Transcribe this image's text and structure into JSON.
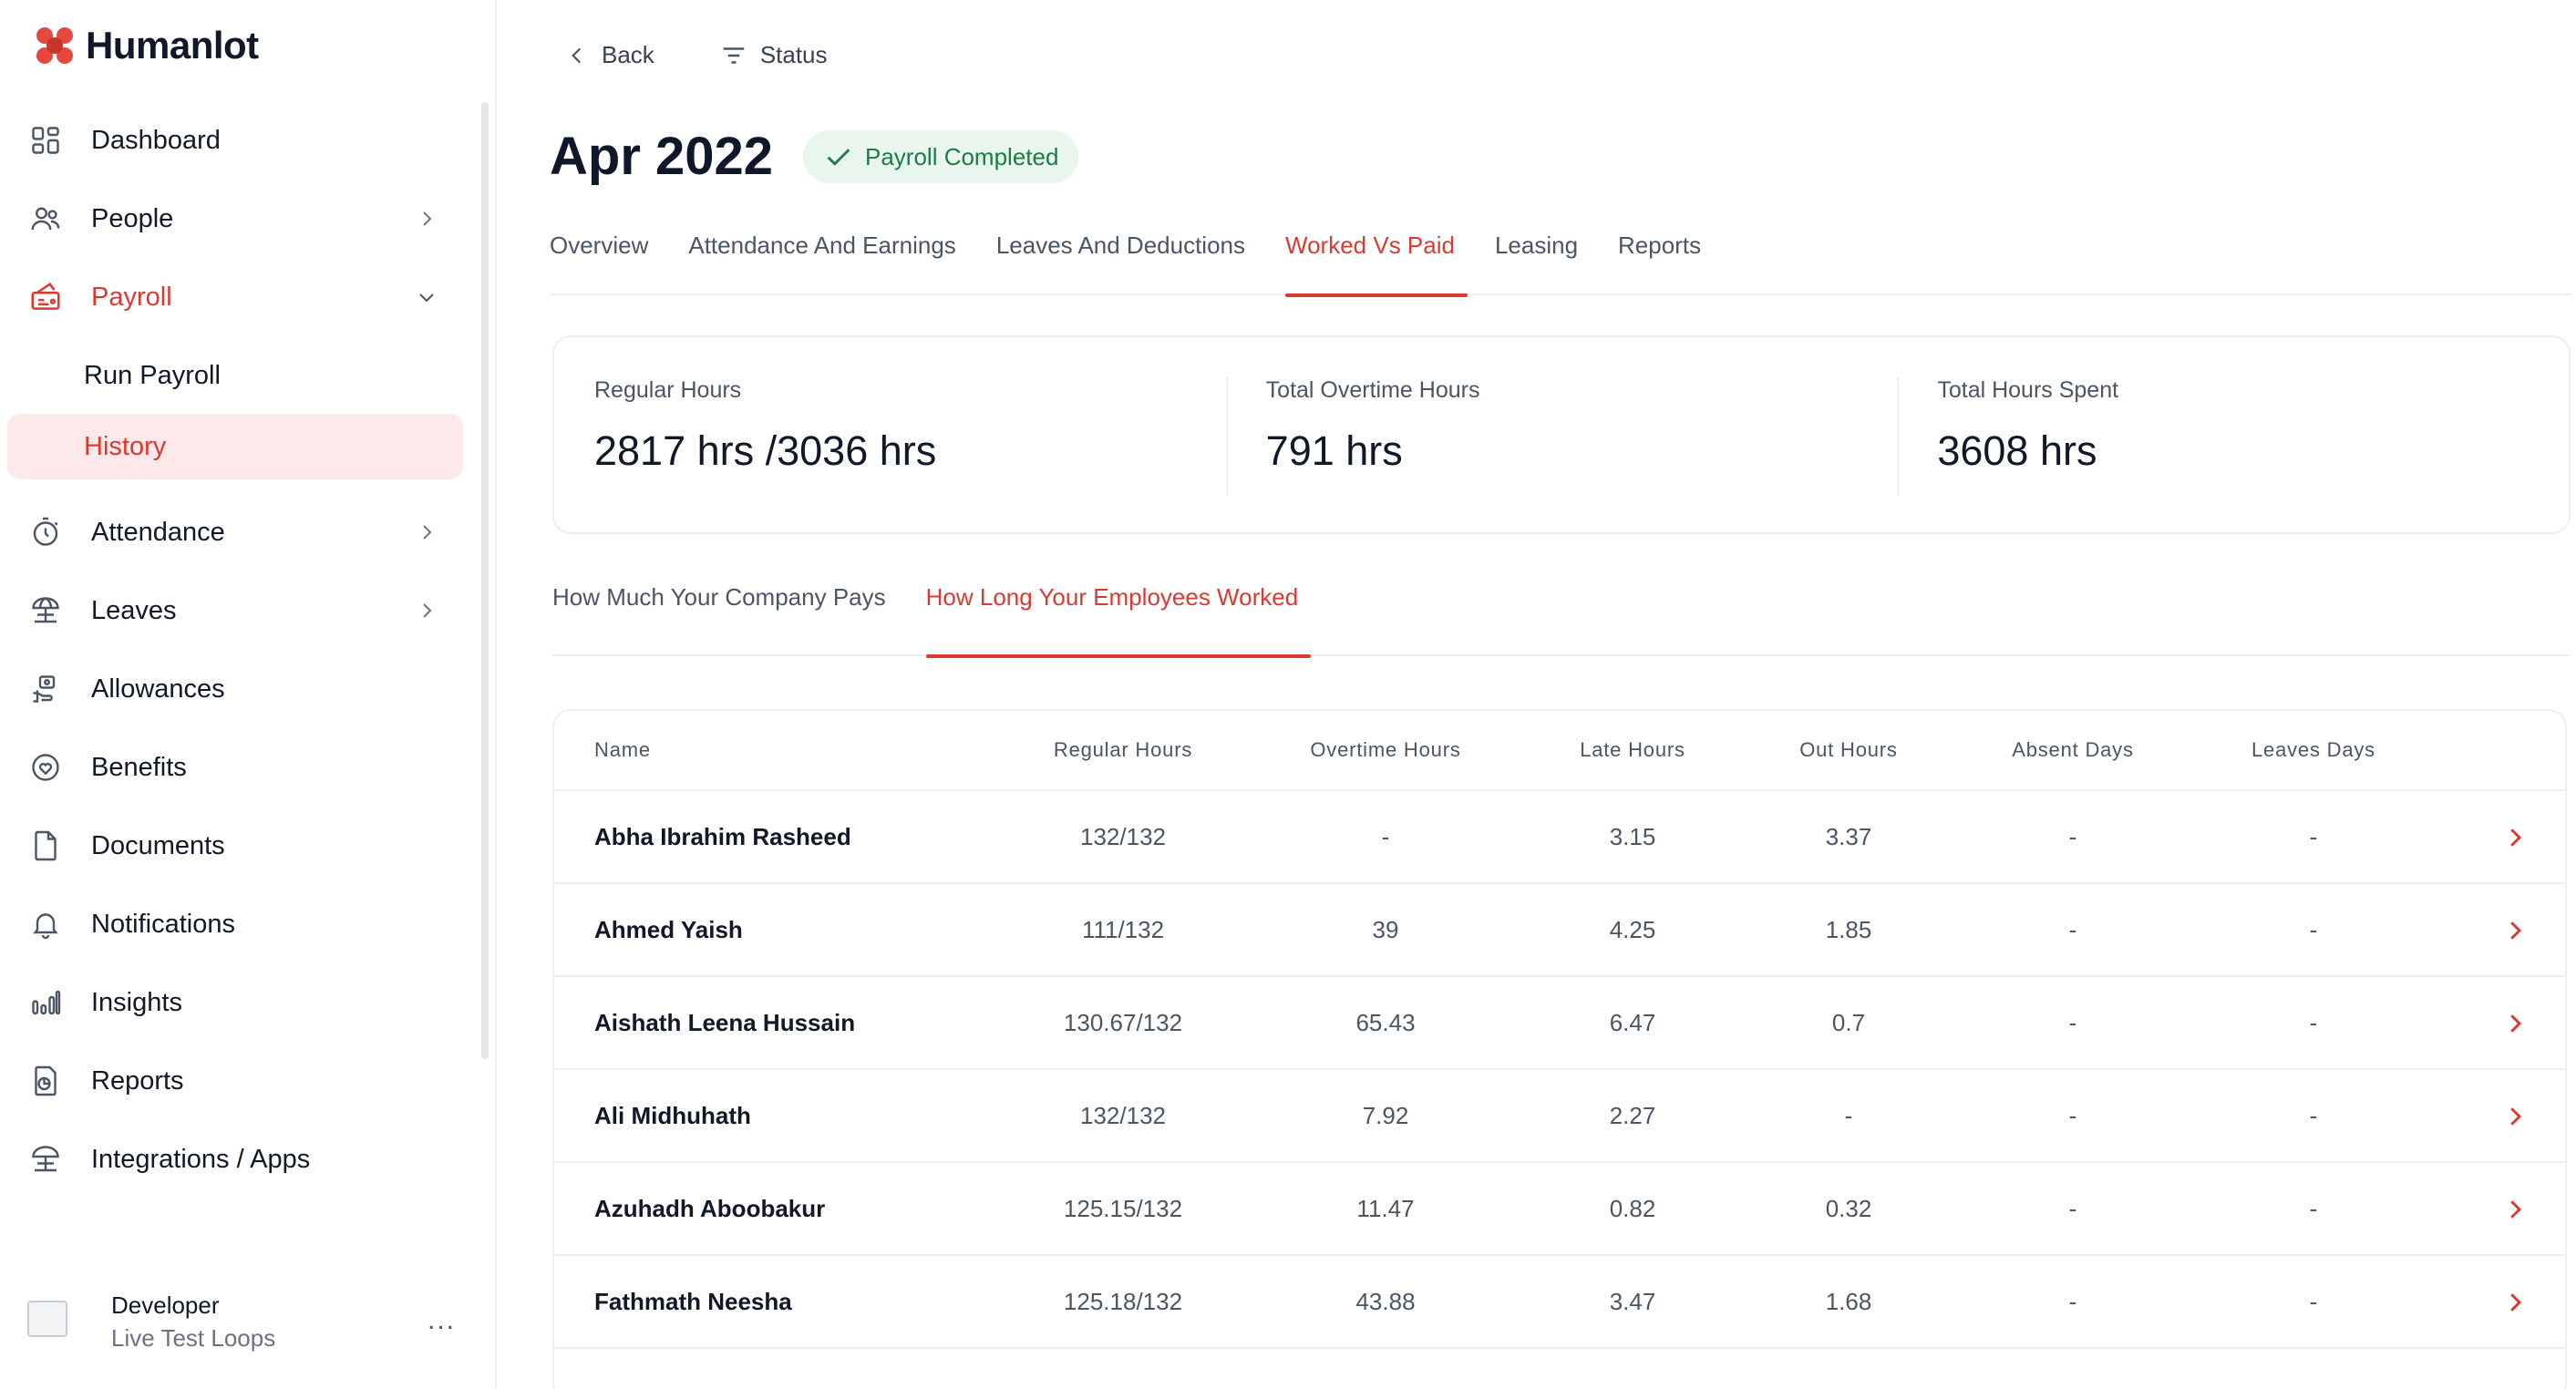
{
  "brand": {
    "name": "Humanlot",
    "accent": "#d93a32"
  },
  "sidebar": {
    "items": [
      {
        "label": "Dashboard",
        "icon": "dashboard-icon"
      },
      {
        "label": "People",
        "icon": "people-icon"
      },
      {
        "label": "Payroll",
        "icon": "payroll-icon"
      },
      {
        "label": "Attendance",
        "icon": "stopwatch-icon"
      },
      {
        "label": "Leaves",
        "icon": "beach-umbrella-icon"
      },
      {
        "label": "Allowances",
        "icon": "allowance-hand-icon"
      },
      {
        "label": "Benefits",
        "icon": "heart-shield-icon"
      },
      {
        "label": "Documents",
        "icon": "document-icon"
      },
      {
        "label": "Notifications",
        "icon": "bell-icon"
      },
      {
        "label": "Insights",
        "icon": "bar-chart-icon"
      },
      {
        "label": "Reports",
        "icon": "report-icon"
      },
      {
        "label": "Integrations / Apps",
        "icon": "integrations-icon"
      }
    ],
    "payroll_sub": [
      {
        "label": "Run Payroll"
      },
      {
        "label": "History"
      }
    ],
    "user": {
      "name": "Developer",
      "org": "Live Test Loops",
      "more": "..."
    }
  },
  "topbar": {
    "back": "Back",
    "status": "Status"
  },
  "header": {
    "title": "Apr 2022",
    "badge": "Payroll Completed"
  },
  "tabs": [
    {
      "label": "Overview"
    },
    {
      "label": "Attendance And Earnings"
    },
    {
      "label": "Leaves And Deductions"
    },
    {
      "label": "Worked Vs Paid"
    },
    {
      "label": "Leasing"
    },
    {
      "label": "Reports"
    }
  ],
  "stats": [
    {
      "label": "Regular Hours",
      "value": "2817 hrs /3036 hrs"
    },
    {
      "label": "Total Overtime Hours",
      "value": "791 hrs"
    },
    {
      "label": "Total Hours Spent",
      "value": "3608 hrs"
    }
  ],
  "subtabs": [
    {
      "label": "How Much Your Company Pays"
    },
    {
      "label": "How Long Your Employees Worked"
    }
  ],
  "table": {
    "columns": [
      "Name",
      "Regular Hours",
      "Overtime Hours",
      "Late Hours",
      "Out Hours",
      "Absent Days",
      "Leaves Days"
    ],
    "rows": [
      [
        "Abha Ibrahim Rasheed",
        "132/132",
        "-",
        "3.15",
        "3.37",
        "-",
        "-"
      ],
      [
        "Ahmed Yaish",
        "111/132",
        "39",
        "4.25",
        "1.85",
        "-",
        "-"
      ],
      [
        "Aishath Leena Hussain",
        "130.67/132",
        "65.43",
        "6.47",
        "0.7",
        "-",
        "-"
      ],
      [
        "Ali Midhuhath",
        "132/132",
        "7.92",
        "2.27",
        "-",
        "-",
        "-"
      ],
      [
        "Azuhadh Aboobakur",
        "125.15/132",
        "11.47",
        "0.82",
        "0.32",
        "-",
        "-"
      ],
      [
        "Fathmath Neesha",
        "125.18/132",
        "43.88",
        "3.47",
        "1.68",
        "-",
        "-"
      ]
    ]
  }
}
